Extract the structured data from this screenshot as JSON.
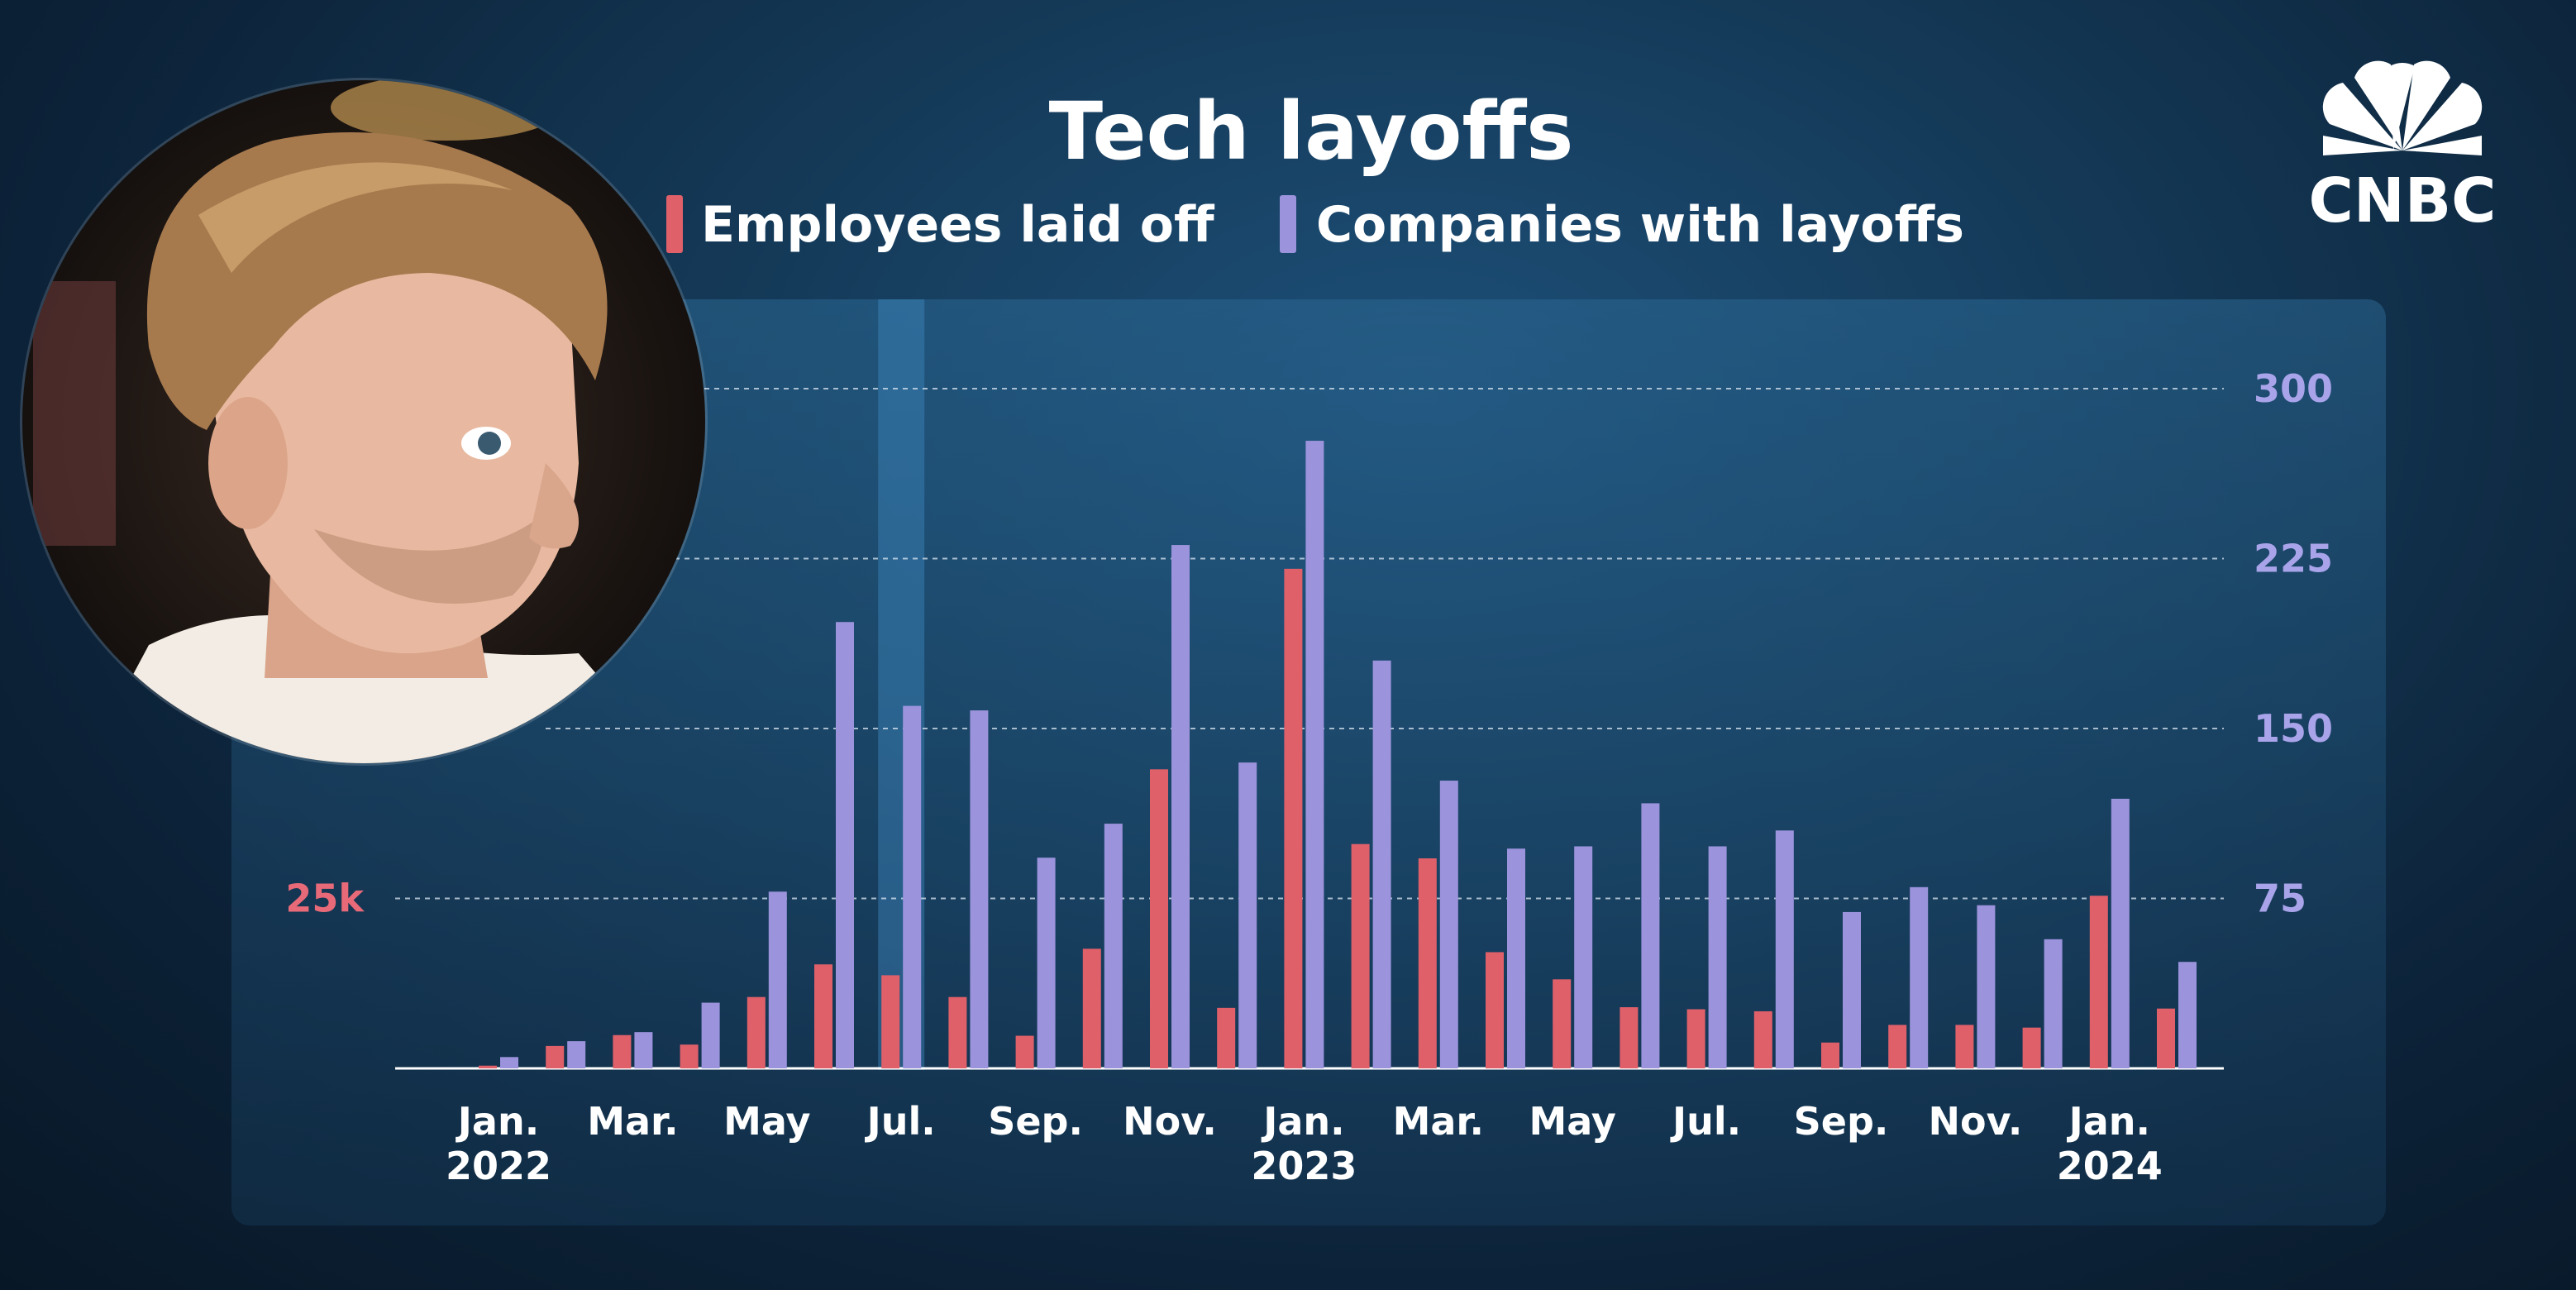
{
  "colors": {
    "employees": "#e0606a",
    "companies": "#9b93dc",
    "left_tick": "#e86a78",
    "right_tick": "#a9a4ea",
    "grid": "#d9e6f2"
  },
  "logo": {
    "text": "CNBC",
    "icon": "peacock-icon"
  },
  "presenter": {
    "icon": "presenter-avatar-icon"
  },
  "chart_data": {
    "type": "bar",
    "title": "Tech layoffs",
    "legend_placement": "top",
    "series": [
      {
        "name": "Employees laid off",
        "axis": "left",
        "values": [
          400,
          3300,
          4900,
          3500,
          10500,
          15300,
          13700,
          10500,
          4800,
          17600,
          44000,
          8900,
          73500,
          33000,
          30900,
          17100,
          13100,
          9000,
          8700,
          8400,
          3800,
          6400,
          6400,
          6000,
          25400,
          8800
        ]
      },
      {
        "name": "Companies with layoffs",
        "axis": "right",
        "values": [
          5,
          12,
          16,
          29,
          78,
          197,
          160,
          158,
          93,
          108,
          231,
          135,
          277,
          180,
          127,
          97,
          98,
          117,
          98,
          105,
          69,
          80,
          72,
          57,
          119,
          47
        ]
      }
    ],
    "x": [
      "2022-01",
      "2022-02",
      "2022-03",
      "2022-04",
      "2022-05",
      "2022-06",
      "2022-07",
      "2022-08",
      "2022-09",
      "2022-10",
      "2022-11",
      "2022-12",
      "2023-01",
      "2023-02",
      "2023-03",
      "2023-04",
      "2023-05",
      "2023-06",
      "2023-07",
      "2023-08",
      "2023-09",
      "2023-10",
      "2023-11",
      "2023-12",
      "2024-01",
      "2024-02"
    ],
    "highlight": "2022-07",
    "x_ticks": [
      {
        "x": "2022-01",
        "month": "Jan.",
        "year": "2022"
      },
      {
        "x": "2022-03",
        "month": "Mar.",
        "year": ""
      },
      {
        "x": "2022-05",
        "month": "May",
        "year": ""
      },
      {
        "x": "2022-07",
        "month": "Jul.",
        "year": ""
      },
      {
        "x": "2022-09",
        "month": "Sep.",
        "year": ""
      },
      {
        "x": "2022-11",
        "month": "Nov.",
        "year": ""
      },
      {
        "x": "2023-01",
        "month": "Jan.",
        "year": "2023"
      },
      {
        "x": "2023-03",
        "month": "Mar.",
        "year": ""
      },
      {
        "x": "2023-05",
        "month": "May",
        "year": ""
      },
      {
        "x": "2023-07",
        "month": "Jul.",
        "year": ""
      },
      {
        "x": "2023-09",
        "month": "Sep.",
        "year": ""
      },
      {
        "x": "2023-11",
        "month": "Nov.",
        "year": ""
      },
      {
        "x": "2024-01",
        "month": "Jan.",
        "year": "2024"
      }
    ],
    "y_left": {
      "ticks": [
        {
          "value": 25000,
          "label": "25k"
        }
      ],
      "ylim": [
        0,
        100000
      ]
    },
    "y_right": {
      "ticks": [
        {
          "value": 75,
          "label": "75"
        },
        {
          "value": 150,
          "label": "150"
        },
        {
          "value": 225,
          "label": "225"
        },
        {
          "value": 300,
          "label": "300"
        }
      ],
      "ylim": [
        0,
        300
      ]
    },
    "grid": true
  }
}
